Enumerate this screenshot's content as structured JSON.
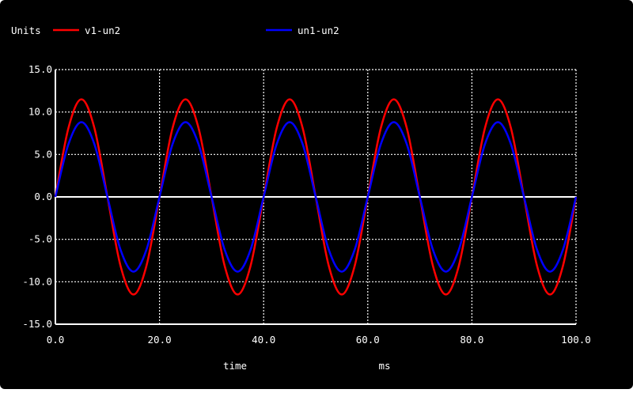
{
  "legend": {
    "units_label": "Units",
    "entries": [
      {
        "name": "v1-un2",
        "color": "#ff0000"
      },
      {
        "name": "un1-un2",
        "color": "#0000ff"
      }
    ]
  },
  "chart_data": {
    "type": "line",
    "xlabel": "time",
    "xunit": "ms",
    "ylabel": "",
    "xlim": [
      0,
      100
    ],
    "ylim": [
      -15,
      15
    ],
    "x_ticks": [
      0,
      20,
      40,
      60,
      80,
      100
    ],
    "x_tick_labels": [
      "0.0",
      "20.0",
      "40.0",
      "60.0",
      "80.0",
      "100.0"
    ],
    "y_ticks": [
      15,
      10,
      5,
      0,
      -5,
      -10,
      -15
    ],
    "y_tick_labels": [
      "15.0",
      "10.0",
      "5.0",
      "0.0",
      "-5.0",
      "-10.0",
      "-15.0"
    ],
    "grid": true,
    "background": "#000000",
    "axis_color": "#ffffff",
    "series": [
      {
        "name": "v1-un2",
        "color": "#ff0000",
        "x": [
          0,
          2.5,
          5,
          7.5,
          10,
          12.5,
          15,
          17.5,
          20,
          22.5,
          25,
          27.5,
          30,
          32.5,
          35,
          37.5,
          40,
          42.5,
          45,
          47.5,
          50,
          52.5,
          55,
          57.5,
          60,
          62.5,
          65,
          67.5,
          70,
          72.5,
          75,
          77.5,
          80,
          82.5,
          85,
          87.5,
          90,
          92.5,
          95,
          97.5,
          100
        ],
        "y": [
          0,
          8.1,
          11.5,
          8.1,
          0,
          -8.1,
          -11.5,
          -8.1,
          0,
          8.1,
          11.5,
          8.1,
          0,
          -8.1,
          -11.5,
          -8.1,
          0,
          8.1,
          11.5,
          8.1,
          0,
          -8.1,
          -11.5,
          -8.1,
          0,
          8.1,
          11.5,
          8.1,
          0,
          -8.1,
          -11.5,
          -8.1,
          0,
          8.1,
          11.5,
          8.1,
          0,
          -8.1,
          -11.5,
          -8.1,
          0
        ]
      },
      {
        "name": "un1-un2",
        "color": "#0000ff",
        "x": [
          0,
          2.5,
          5,
          7.5,
          10,
          12.5,
          15,
          17.5,
          20,
          22.5,
          25,
          27.5,
          30,
          32.5,
          35,
          37.5,
          40,
          42.5,
          45,
          47.5,
          50,
          52.5,
          55,
          57.5,
          60,
          62.5,
          65,
          67.5,
          70,
          72.5,
          75,
          77.5,
          80,
          82.5,
          85,
          87.5,
          90,
          92.5,
          95,
          97.5,
          100
        ],
        "y": [
          0,
          6.2,
          8.8,
          6.2,
          0,
          -6.2,
          -8.8,
          -6.2,
          0,
          6.2,
          8.8,
          6.2,
          0,
          -6.2,
          -8.8,
          -6.2,
          0,
          6.2,
          8.8,
          6.2,
          0,
          -6.2,
          -8.8,
          -6.2,
          0,
          6.2,
          8.8,
          6.2,
          0,
          -6.2,
          -8.8,
          -6.2,
          0,
          6.2,
          8.8,
          6.2,
          0,
          -6.2,
          -8.8,
          -6.2,
          0
        ]
      }
    ]
  }
}
